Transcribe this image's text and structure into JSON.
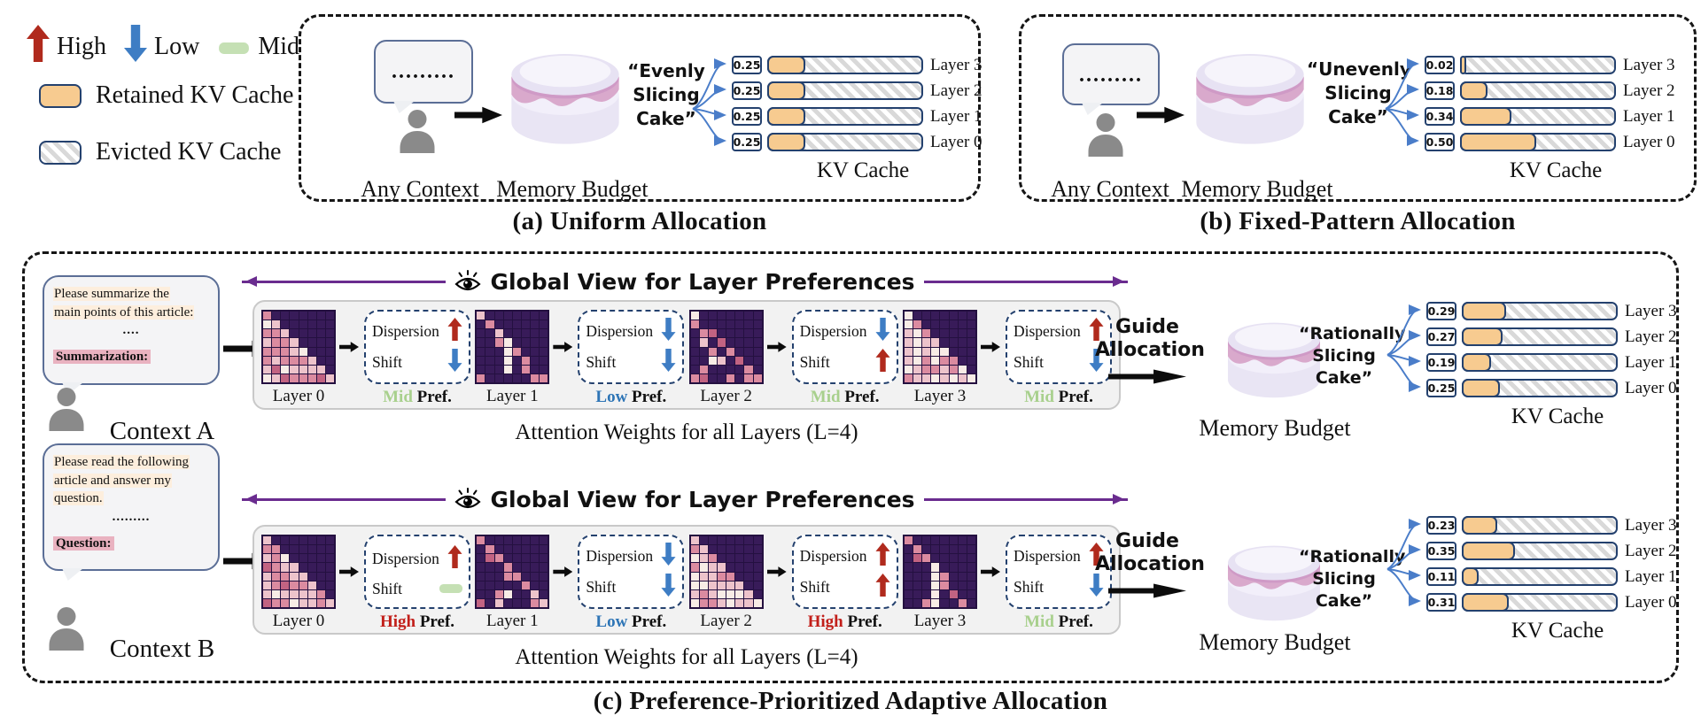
{
  "labels": {
    "dispersion": "Dispersion",
    "shift": "Shift",
    "pref_suffix": " Pref."
  },
  "legend": {
    "high_label": "High",
    "low_label": "Low",
    "mid_label": "Mid",
    "retained_label": "Retained KV Cache",
    "evicted_label": "Evicted KV Cache"
  },
  "panel_a": {
    "caption": "(a) Uniform Allocation",
    "bubble_dots": ".........",
    "context_label": "Any Context",
    "memory_label": "Memory Budget",
    "slicing_lines": [
      "“Evenly",
      "Slicing",
      "Cake”"
    ],
    "kv_caption": "KV Cache",
    "bars": [
      {
        "layer": "Layer 3",
        "value": "0.25",
        "frac": 0.25
      },
      {
        "layer": "Layer 2",
        "value": "0.25",
        "frac": 0.25
      },
      {
        "layer": "Layer 1",
        "value": "0.25",
        "frac": 0.25
      },
      {
        "layer": "Layer 0",
        "value": "0.25",
        "frac": 0.25
      }
    ]
  },
  "panel_b": {
    "caption": "(b) Fixed-Pattern Allocation",
    "bubble_dots": ".........",
    "context_label": "Any Context",
    "memory_label": "Memory Budget",
    "slicing_lines": [
      "“Unevenly",
      "Slicing",
      "Cake”"
    ],
    "kv_caption": "KV Cache",
    "bars": [
      {
        "layer": "Layer 3",
        "value": "0.02",
        "frac": 0.02
      },
      {
        "layer": "Layer 2",
        "value": "0.18",
        "frac": 0.18
      },
      {
        "layer": "Layer 1",
        "value": "0.34",
        "frac": 0.34
      },
      {
        "layer": "Layer 0",
        "value": "0.50",
        "frac": 0.5
      }
    ]
  },
  "panel_c": {
    "caption": "(c) Preference-Prioritized Adaptive Allocation",
    "rows": [
      {
        "context_label": "Context A",
        "bubble_lines": [
          "Please summarize the",
          "main points of this article:"
        ],
        "bubble_dots": "....",
        "bubble_tag": "Summarization:",
        "global_view_label": "Global View for Layer Preferences",
        "attention_caption": "Attention Weights for all Layers (L=4)",
        "guide_lines": [
          "Guide",
          "Allocation"
        ],
        "memory_label": "Memory Budget",
        "slicing_lines": [
          "“Rationally",
          "Slicing",
          "Cake”"
        ],
        "kv_caption": "KV Cache",
        "layers": [
          {
            "label": "Layer 0",
            "pattern": "tri-dense",
            "dispersion": "up",
            "shift": "down",
            "pref": "Mid"
          },
          {
            "label": "Layer 1",
            "pattern": "diag-col",
            "dispersion": "down",
            "shift": "down",
            "pref": "Low"
          },
          {
            "label": "Layer 2",
            "pattern": "sparse",
            "dispersion": "down",
            "shift": "up",
            "pref": "Mid"
          },
          {
            "label": "Layer 3",
            "pattern": "tri-light",
            "dispersion": "up",
            "shift": "down",
            "pref": "Mid"
          }
        ],
        "bars": [
          {
            "layer": "Layer 3",
            "value": "0.29",
            "frac": 0.29
          },
          {
            "layer": "Layer 2",
            "value": "0.27",
            "frac": 0.27
          },
          {
            "layer": "Layer 1",
            "value": "0.19",
            "frac": 0.19
          },
          {
            "layer": "Layer 0",
            "value": "0.25",
            "frac": 0.25
          }
        ]
      },
      {
        "context_label": "Context B",
        "bubble_lines": [
          "Please read the following",
          "article and answer my",
          "question."
        ],
        "bubble_dots": ".........",
        "bubble_tag": "Question:",
        "global_view_label": "Global View for Layer Preferences",
        "attention_caption": "Attention Weights for all Layers (L=4)",
        "guide_lines": [
          "Guide",
          "Allocation"
        ],
        "memory_label": "Memory Budget",
        "slicing_lines": [
          "“Rationally",
          "Slicing",
          "Cake”"
        ],
        "kv_caption": "KV Cache",
        "layers": [
          {
            "label": "Layer 0",
            "pattern": "tri-dense",
            "dispersion": "up",
            "shift": "mid",
            "pref": "High"
          },
          {
            "label": "Layer 1",
            "pattern": "diag",
            "dispersion": "down",
            "shift": "down",
            "pref": "Low"
          },
          {
            "label": "Layer 2",
            "pattern": "tri-light",
            "dispersion": "up",
            "shift": "up",
            "pref": "High"
          },
          {
            "label": "Layer 3",
            "pattern": "diag-col2",
            "dispersion": "up",
            "shift": "down",
            "pref": "Mid"
          }
        ],
        "bars": [
          {
            "layer": "Layer 3",
            "value": "0.23",
            "frac": 0.23
          },
          {
            "layer": "Layer 2",
            "value": "0.35",
            "frac": 0.35
          },
          {
            "layer": "Layer 1",
            "value": "0.11",
            "frac": 0.11
          },
          {
            "layer": "Layer 0",
            "value": "0.31",
            "frac": 0.31
          }
        ]
      }
    ]
  },
  "colors": {
    "high": "#b02a1d",
    "low": "#3e7dc4",
    "mid": "#c5e0b4",
    "pref_high": "#c21f1a",
    "pref_low": "#2e75b6",
    "pref_mid": "#a8d08d",
    "retained": "#f7cb90",
    "border_navy": "#24416e",
    "purple": "#6a2c8f",
    "fan_blue": "#4a7dc9",
    "heatmap_bg": "#381b59"
  }
}
